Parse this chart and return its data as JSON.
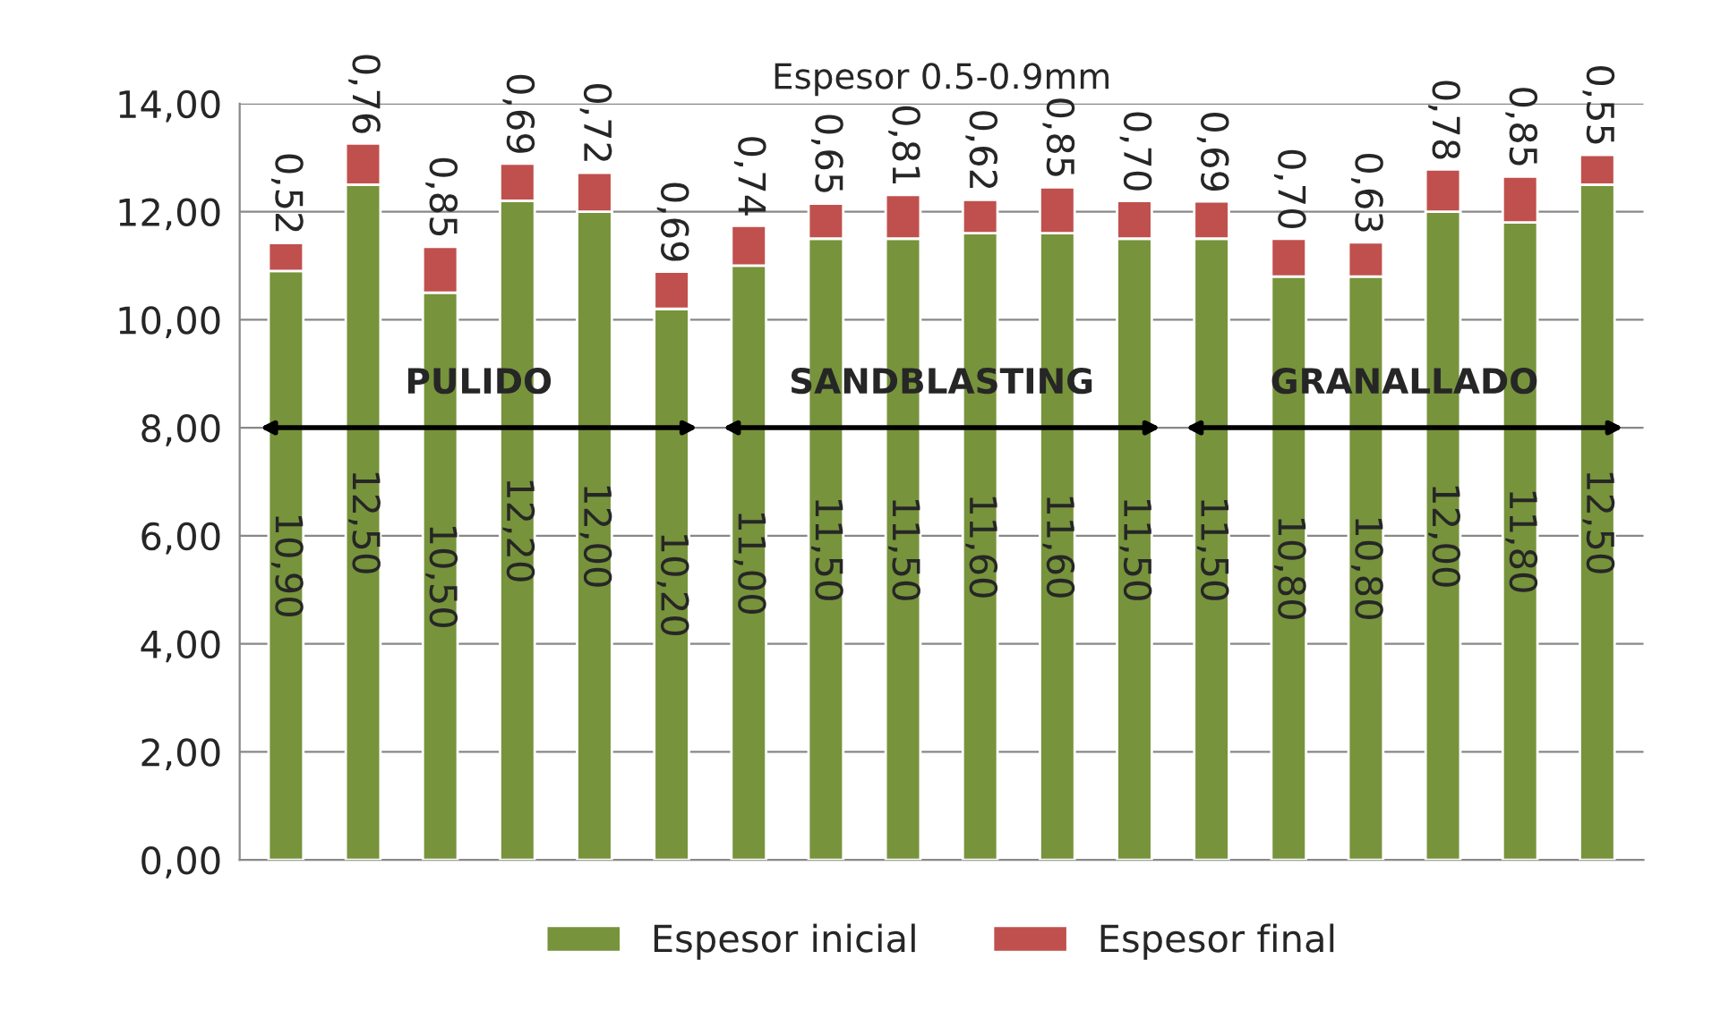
{
  "chart_data": {
    "type": "bar",
    "title": "Espesor 0.5-0.9mm",
    "stacked": true,
    "categories": [
      null,
      null,
      null,
      null,
      null,
      null,
      null,
      null,
      null,
      null,
      null,
      null,
      null,
      null,
      null,
      null,
      null,
      null
    ],
    "series": [
      {
        "name": "Espesor inicial",
        "color": "#77933c",
        "values": [
          10.9,
          12.5,
          10.5,
          12.2,
          12.0,
          10.2,
          11.0,
          11.5,
          11.5,
          11.6,
          11.6,
          11.5,
          11.5,
          10.8,
          10.8,
          12.0,
          11.8,
          12.5
        ],
        "value_labels": [
          "10,90",
          "12,50",
          "10,50",
          "12,20",
          "12,00",
          "10,20",
          "11,00",
          "11,50",
          "11,50",
          "11,60",
          "11,60",
          "11,50",
          "11,50",
          "10,80",
          "10,80",
          "12,00",
          "11,80",
          "12,50"
        ]
      },
      {
        "name": "Espesor final",
        "color": "#c0504d",
        "values": [
          0.52,
          0.76,
          0.85,
          0.69,
          0.72,
          0.69,
          0.74,
          0.65,
          0.81,
          0.62,
          0.85,
          0.7,
          0.69,
          0.7,
          0.63,
          0.78,
          0.85,
          0.55
        ],
        "value_labels": [
          "0,52",
          "0,76",
          "0,85",
          "0,69",
          "0,72",
          "0,69",
          "0,74",
          "0,65",
          "0,81",
          "0,62",
          "0,85",
          "0,70",
          "0,69",
          "0,70",
          "0,63",
          "0,78",
          "0,85",
          "0,55"
        ]
      }
    ],
    "annotations": [
      "PULIDO",
      "SANDBLASTING",
      "GRANALLADO"
    ],
    "ylim": [
      0,
      14
    ],
    "yticks": [
      {
        "value": 0,
        "label": "0,00"
      },
      {
        "value": 2,
        "label": "2,00"
      },
      {
        "value": 4,
        "label": "4,00"
      },
      {
        "value": 6,
        "label": "6,00"
      },
      {
        "value": 8,
        "label": "8,00"
      },
      {
        "value": 10,
        "label": "10,00"
      },
      {
        "value": 12,
        "label": "12,00"
      },
      {
        "value": 14,
        "label": "14,00"
      }
    ],
    "grid": "y",
    "legend": "bottom"
  }
}
